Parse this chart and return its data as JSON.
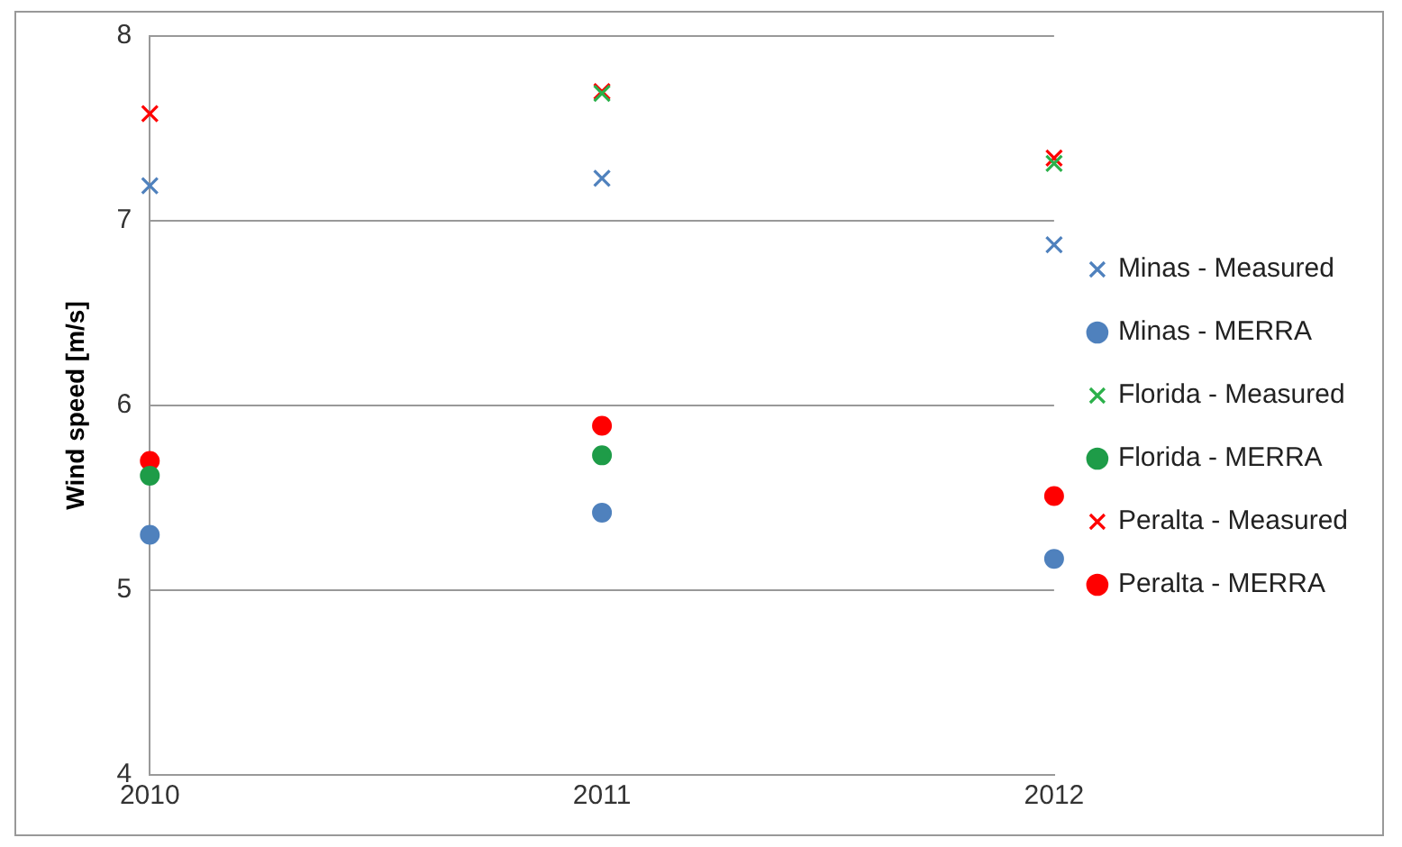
{
  "chart_data": {
    "type": "scatter",
    "ylabel": "Wind speed [m/s]",
    "x": [
      2010,
      2011,
      2012
    ],
    "xlim": [
      2010,
      2012
    ],
    "xticks": [
      2010,
      2011,
      2012
    ],
    "ylim": [
      4,
      8
    ],
    "yticks": [
      4,
      5,
      6,
      7,
      8
    ],
    "grid": "y",
    "legend": "right",
    "series": [
      {
        "name": "Minas - Measured",
        "color": "#4f81bd",
        "marker": "cross",
        "values": [
          7.19,
          7.23,
          6.87
        ]
      },
      {
        "name": "Minas - MERRA",
        "color": "#4f81bd",
        "marker": "circle",
        "values": [
          5.3,
          5.42,
          5.17
        ]
      },
      {
        "name": "Florida - Measured",
        "color": "#2bb04a",
        "marker": "cross",
        "values": [
          null,
          7.69,
          7.31
        ]
      },
      {
        "name": "Florida - MERRA",
        "color": "#1e9c48",
        "marker": "circle",
        "values": [
          5.62,
          5.73,
          null
        ]
      },
      {
        "name": "Peralta - Measured",
        "color": "#ff0000",
        "marker": "cross",
        "values": [
          7.58,
          7.7,
          7.34
        ]
      },
      {
        "name": "Peralta - MERRA",
        "color": "#ff0000",
        "marker": "circle",
        "values": [
          5.7,
          5.89,
          5.51
        ]
      }
    ]
  }
}
